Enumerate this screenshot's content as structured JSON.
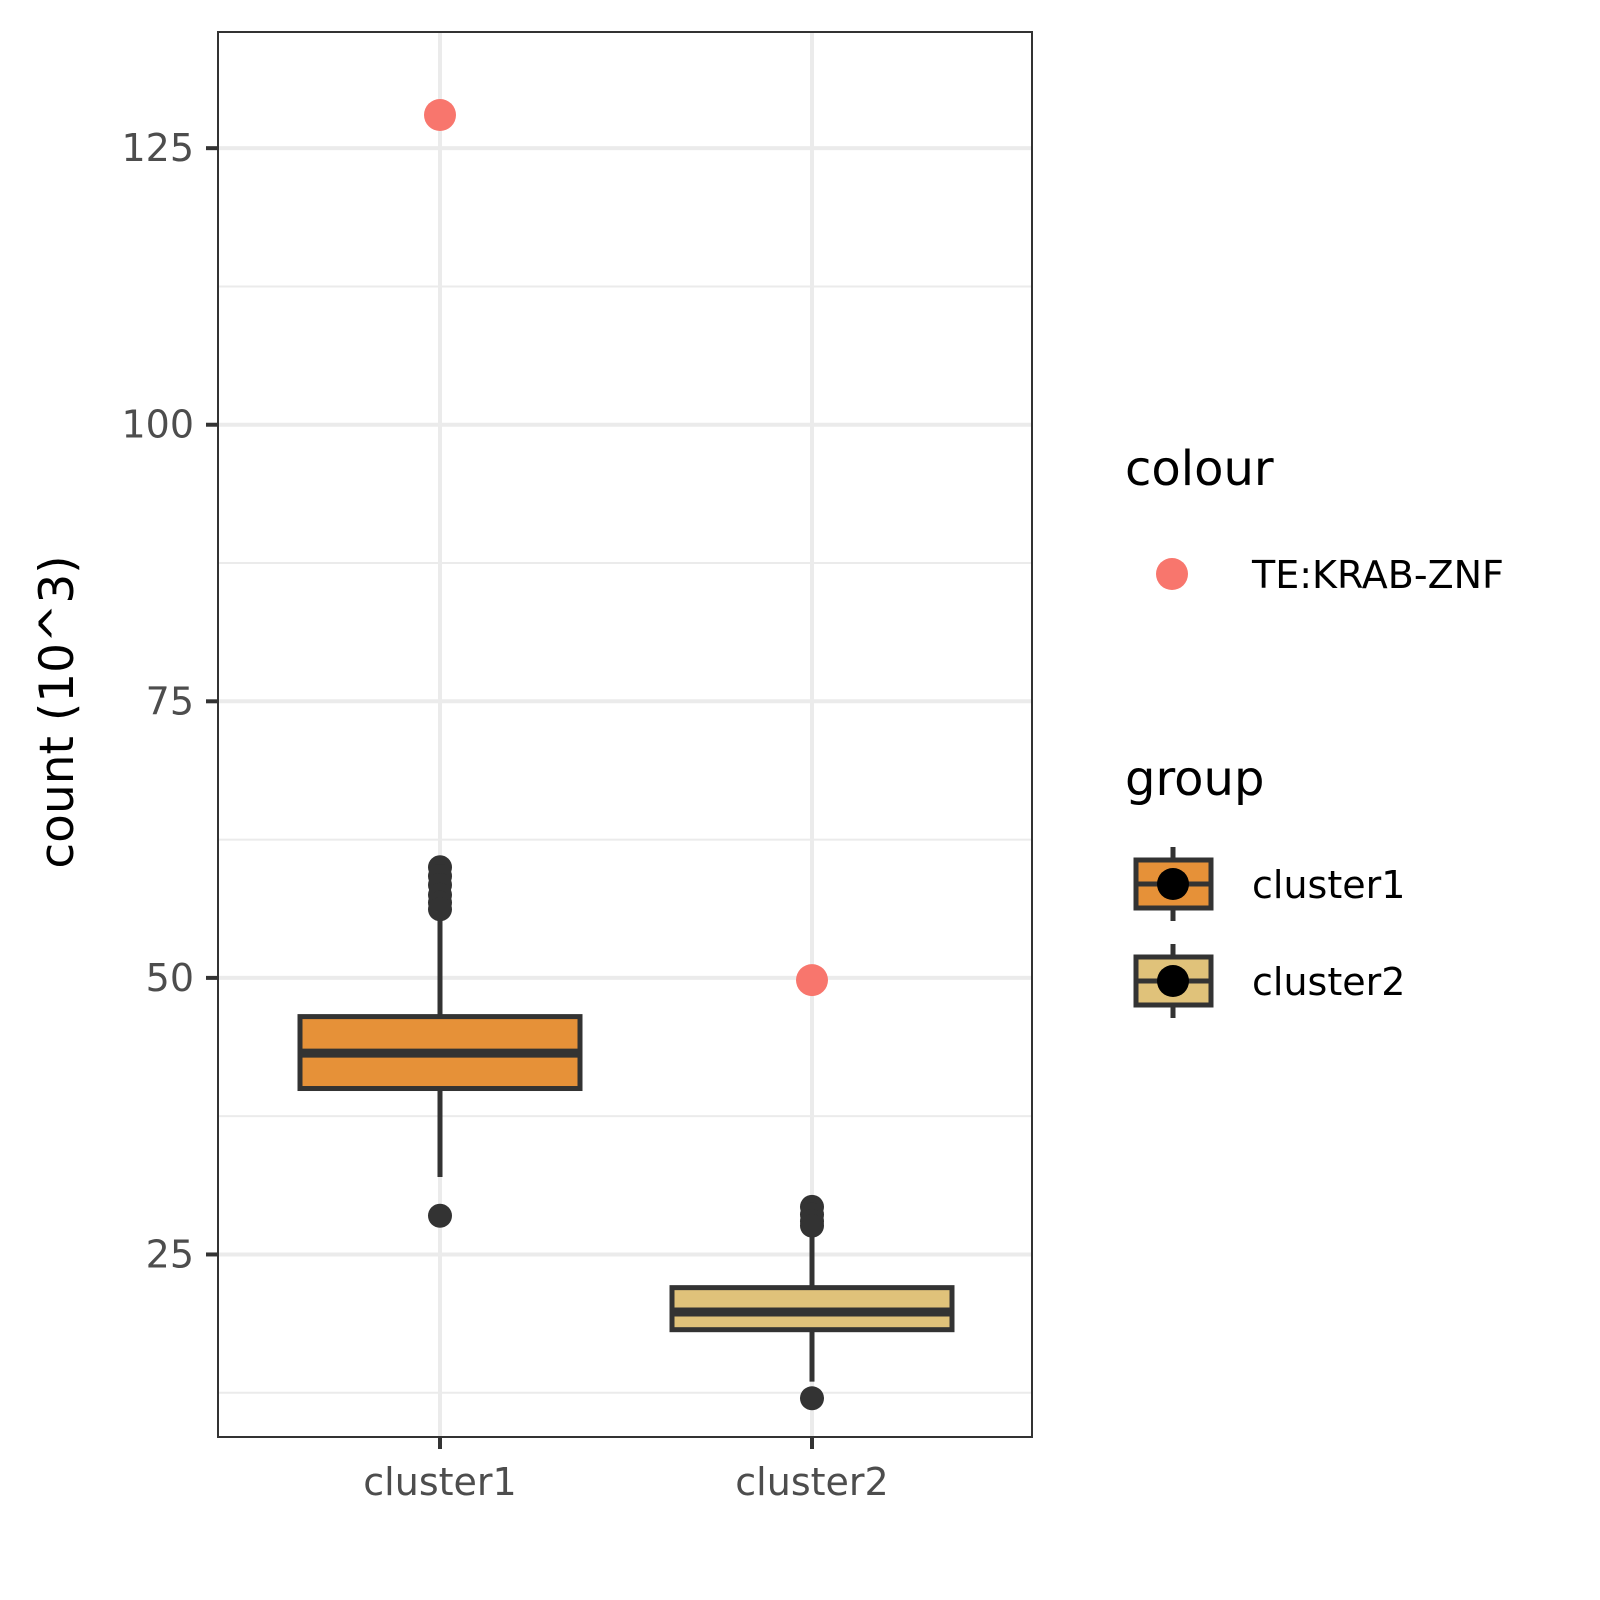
{
  "chart_data": {
    "type": "boxplot",
    "xlabel": "",
    "ylabel": "count (10^3)",
    "ylim": [
      8.5,
      135.5
    ],
    "yticks": [
      25,
      50,
      75,
      100,
      125
    ],
    "yticks_minor": [
      12.5,
      37.5,
      62.5,
      87.5,
      112.5
    ],
    "categories": [
      "cluster1",
      "cluster2"
    ],
    "grid": true,
    "boxes": [
      {
        "category": "cluster1",
        "fill": "#E69138",
        "q1": 40.0,
        "median": 43.2,
        "q3": 46.5,
        "whisker_low": 32.0,
        "whisker_high": 56.0,
        "outliers": [
          60.0,
          59.2,
          58.4,
          57.5,
          56.8,
          56.2,
          28.5
        ]
      },
      {
        "category": "cluster2",
        "fill": "#E0C27A",
        "q1": 18.2,
        "median": 19.8,
        "q3": 22.0,
        "whisker_low": 13.5,
        "whisker_high": 27.5,
        "outliers": [
          29.3,
          28.6,
          28.0,
          27.6,
          12.0
        ]
      }
    ],
    "highlight_points": {
      "name": "TE:KRAB-ZNF",
      "color": "#F8766D",
      "points": [
        {
          "category": "cluster1",
          "y": 128.0
        },
        {
          "category": "cluster2",
          "y": 49.8
        }
      ]
    },
    "legend": {
      "position": "right",
      "colour_title": "colour",
      "colour_items": [
        "TE:KRAB-ZNF"
      ],
      "group_title": "group",
      "group_items": [
        {
          "label": "cluster1",
          "fill": "#E69138"
        },
        {
          "label": "cluster2",
          "fill": "#E0C27A"
        }
      ]
    },
    "colors": {
      "box_line": "#333333",
      "outlier": "#333333",
      "grid": "#EBEBEB",
      "panel_border": "#333333",
      "tick_text": "#4D4D4D"
    }
  }
}
